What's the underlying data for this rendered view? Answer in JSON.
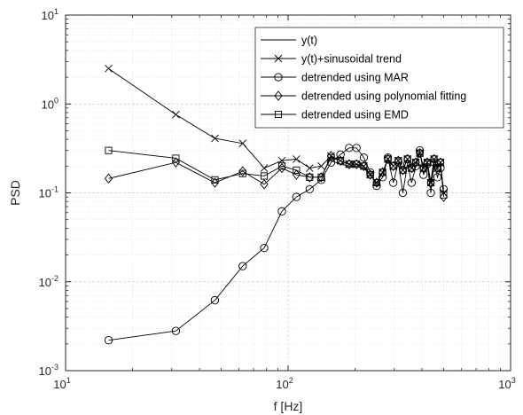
{
  "chart_data": {
    "type": "line",
    "xlabel": "f [Hz]",
    "ylabel": "PSD",
    "xscale": "log",
    "yscale": "log",
    "xlim": [
      10,
      1000
    ],
    "ylim": [
      0.001,
      10
    ],
    "grid": true,
    "legend_position": "top-right",
    "x_ticks": [
      {
        "base": "10",
        "exp": "1"
      },
      {
        "base": "10",
        "exp": "2"
      },
      {
        "base": "10",
        "exp": "3"
      }
    ],
    "y_ticks": [
      {
        "base": "10",
        "exp": "-3"
      },
      {
        "base": "10",
        "exp": "-2"
      },
      {
        "base": "10",
        "exp": "-1"
      },
      {
        "base": "10",
        "exp": "0"
      },
      {
        "base": "10",
        "exp": "1"
      }
    ],
    "series": [
      {
        "name": "y(t)",
        "marker": "none",
        "x": [
          156,
          172,
          188,
          203,
          219,
          234,
          250,
          266,
          281,
          297,
          313,
          328,
          344,
          359,
          375,
          391,
          406,
          422,
          438,
          453,
          469,
          484,
          500
        ],
        "y": [
          0.23,
          0.21,
          0.2,
          0.2,
          0.19,
          0.16,
          0.13,
          0.17,
          0.24,
          0.2,
          0.23,
          0.18,
          0.24,
          0.19,
          0.22,
          0.28,
          0.19,
          0.22,
          0.13,
          0.24,
          0.19,
          0.22,
          0.1
        ]
      },
      {
        "name": "y(t)+sinusoidal trend",
        "marker": "x",
        "x": [
          15.6,
          31.3,
          46.9,
          62.5,
          78.1,
          93.8,
          109,
          125,
          141,
          156,
          172,
          188,
          203,
          219,
          234,
          250,
          266,
          281,
          297,
          313,
          328,
          344,
          359,
          375,
          391,
          406,
          422,
          438,
          453,
          469,
          484,
          500
        ],
        "y": [
          2.5,
          0.76,
          0.41,
          0.36,
          0.19,
          0.23,
          0.24,
          0.19,
          0.2,
          0.26,
          0.23,
          0.21,
          0.21,
          0.2,
          0.16,
          0.13,
          0.17,
          0.24,
          0.2,
          0.23,
          0.18,
          0.24,
          0.19,
          0.22,
          0.28,
          0.19,
          0.22,
          0.13,
          0.24,
          0.19,
          0.22,
          0.1
        ]
      },
      {
        "name": "detrended using MAR",
        "marker": "circle",
        "x": [
          15.6,
          31.3,
          46.9,
          62.5,
          78.1,
          93.8,
          109,
          125,
          141,
          156,
          172,
          188,
          203,
          219,
          234,
          250,
          266,
          281,
          297,
          313,
          328,
          344,
          359,
          375,
          391,
          406,
          422,
          438,
          453,
          469,
          484,
          500
        ],
        "y": [
          0.0022,
          0.0028,
          0.0062,
          0.015,
          0.024,
          0.062,
          0.09,
          0.11,
          0.14,
          0.22,
          0.27,
          0.32,
          0.32,
          0.25,
          0.17,
          0.12,
          0.15,
          0.25,
          0.13,
          0.22,
          0.1,
          0.21,
          0.13,
          0.2,
          0.3,
          0.16,
          0.21,
          0.1,
          0.22,
          0.15,
          0.19,
          0.11
        ]
      },
      {
        "name": "detrended using polynomial fitting",
        "marker": "diamond",
        "x": [
          15.6,
          31.3,
          46.9,
          62.5,
          78.1,
          93.8,
          109,
          125,
          141,
          156,
          172,
          188,
          203,
          219,
          234,
          250,
          266,
          281,
          297,
          313,
          328,
          344,
          359,
          375,
          391,
          406,
          422,
          438,
          453,
          469,
          484,
          500
        ],
        "y": [
          0.145,
          0.22,
          0.13,
          0.175,
          0.125,
          0.19,
          0.16,
          0.15,
          0.15,
          0.26,
          0.23,
          0.21,
          0.21,
          0.2,
          0.16,
          0.13,
          0.17,
          0.24,
          0.2,
          0.23,
          0.18,
          0.24,
          0.19,
          0.22,
          0.28,
          0.19,
          0.22,
          0.13,
          0.24,
          0.19,
          0.22,
          0.09
        ]
      },
      {
        "name": "detrended using EMD",
        "marker": "square",
        "x": [
          15.6,
          31.3,
          46.9,
          62.5,
          78.1,
          93.8,
          109,
          125,
          141,
          156,
          172,
          188,
          203,
          219,
          234,
          250,
          266,
          281,
          297,
          313,
          328,
          344,
          359,
          375,
          391,
          406,
          422,
          438,
          453,
          469,
          484,
          500
        ],
        "y": [
          0.3,
          0.245,
          0.14,
          0.165,
          0.155,
          0.2,
          0.18,
          0.15,
          0.15,
          0.25,
          0.23,
          0.21,
          0.21,
          0.2,
          0.16,
          0.13,
          0.17,
          0.24,
          0.2,
          0.23,
          0.18,
          0.24,
          0.19,
          0.22,
          0.28,
          0.19,
          0.22,
          0.13,
          0.24,
          0.19,
          0.22,
          0.095
        ]
      }
    ]
  }
}
